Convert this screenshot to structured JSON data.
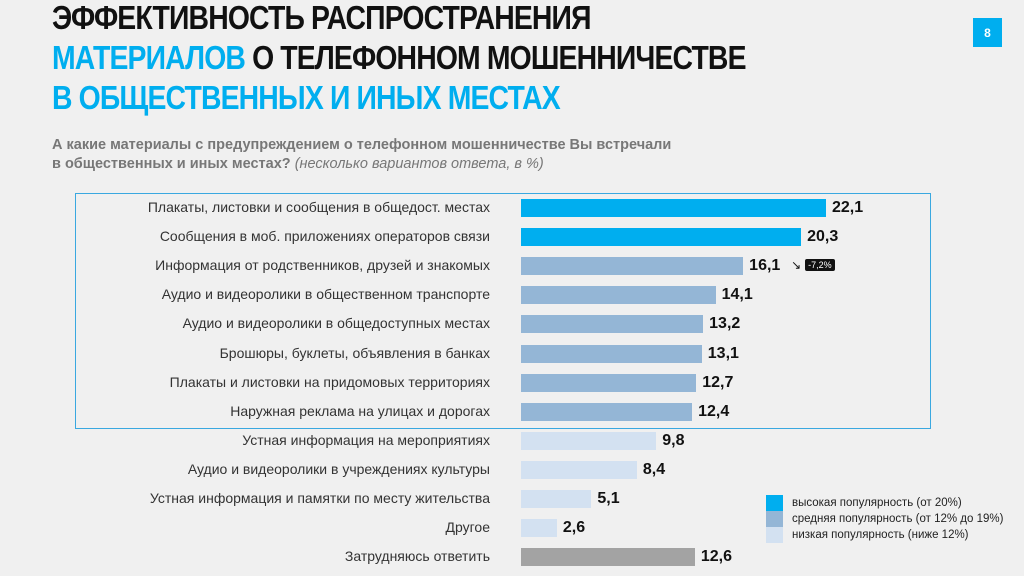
{
  "header": {
    "title_line1": "ЭФФЕКТИВНОСТЬ РАСПРОСТРАНЕНИЯ",
    "title_line2_blue": "МАТЕРИАЛОВ",
    "title_line2_rest": " О ТЕЛЕФОННОМ МОШЕННИЧЕСТВЕ",
    "title_line3": "В ОБЩЕСТВЕННЫХ И ИНЫХ МЕСТАХ",
    "page_number": "8"
  },
  "question": {
    "text": "А какие материалы с предупреждением о телефонном мошенничестве Вы встречали в общественных и иных местах?",
    "note": "(несколько вариантов ответа, в %)"
  },
  "colors": {
    "high": "#00aeef",
    "mid": "#94b6d6",
    "low": "#d3e1f1",
    "other": "#a3a3a3"
  },
  "chart_data": {
    "type": "bar",
    "orientation": "horizontal",
    "unit": "%",
    "categories": [
      "Плакаты, листовки и сообщения в общедост. местах",
      "Сообщения в моб. приложениях операторов связи",
      "Информация от родственников, друзей и знакомых",
      "Аудио и видеоролики в общественном транспорте",
      "Аудио и видеоролики в общедоступных местах",
      "Брошюры, буклеты, объявления в банках",
      "Плакаты и листовки на придомовых территориях",
      "Наружная реклама на улицах и дорогах",
      "Устная информация на мероприятиях",
      "Аудио и видеоролики в учреждениях культуры",
      "Устная информация и памятки по месту жительства",
      "Другое",
      "Затрудняюсь ответить"
    ],
    "values": [
      22.1,
      20.3,
      16.1,
      14.1,
      13.2,
      13.1,
      12.7,
      12.4,
      9.8,
      8.4,
      5.1,
      2.6,
      12.6
    ],
    "value_labels": [
      "22,1",
      "20,3",
      "16,1",
      "14,1",
      "13,2",
      "13,1",
      "12,7",
      "12,4",
      "9,8",
      "8,4",
      "5,1",
      "2,6",
      "12,6"
    ],
    "groups": [
      "high",
      "high",
      "mid",
      "mid",
      "mid",
      "mid",
      "mid",
      "mid",
      "low",
      "low",
      "low",
      "low",
      "other"
    ],
    "annotations": [
      {
        "index": 2,
        "text": "-7,2%",
        "direction": "down"
      }
    ],
    "legend": [
      {
        "group": "high",
        "label": "высокая популярность (от 20%)"
      },
      {
        "group": "mid",
        "label": "средняя популярность (от 12% до 19%)"
      },
      {
        "group": "low",
        "label": "низкая популярность (ниже 12%)"
      }
    ],
    "legend_position": "bottom-right"
  }
}
